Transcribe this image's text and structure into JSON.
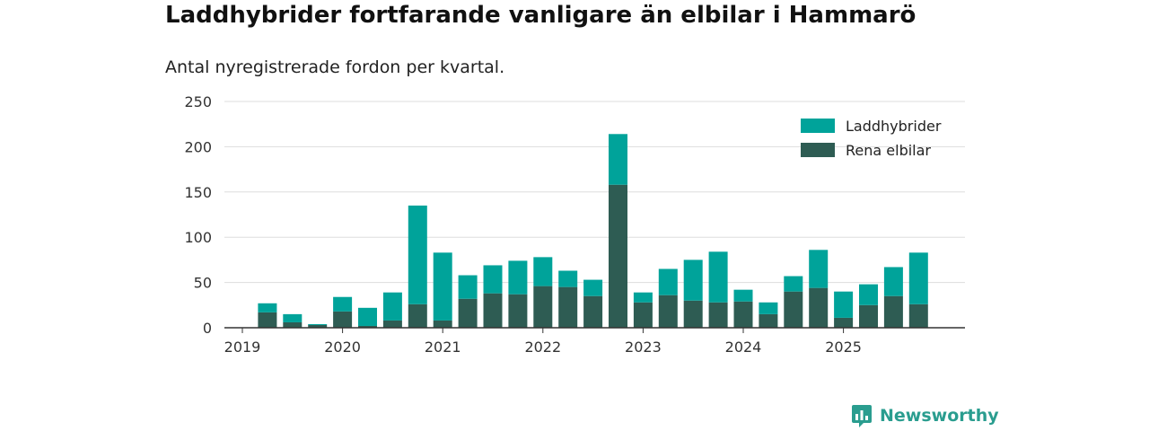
{
  "header": {
    "title": "Laddhybrider fortfarande vanligare än elbilar i Hammarö",
    "subtitle": "Antal nyregistrerade fordon per kvartal."
  },
  "brand": {
    "label": "Newsworthy",
    "icon": "newsworthy-logo-icon"
  },
  "colors": {
    "laddhybrider": "#00a39a",
    "elbilar": "#2e5c53",
    "grid": "#dddddd",
    "axis": "#333333"
  },
  "chart_data": {
    "type": "bar",
    "stacked": true,
    "categories": [
      "2019 Q1",
      "2019 Q2",
      "2019 Q3",
      "2019 Q4",
      "2020 Q1",
      "2020 Q2",
      "2020 Q3",
      "2020 Q4",
      "2021 Q1",
      "2021 Q2",
      "2021 Q3",
      "2021 Q4",
      "2022 Q1",
      "2022 Q2",
      "2022 Q3",
      "2022 Q4",
      "2023 Q1",
      "2023 Q2",
      "2023 Q3",
      "2023 Q4",
      "2024 Q1",
      "2024 Q2",
      "2024 Q3",
      "2024 Q4",
      "2025 Q1",
      "2025 Q2",
      "2025 Q3",
      "2025 Q4"
    ],
    "series": [
      {
        "name": "Rena elbilar",
        "values": [
          0,
          17,
          6,
          3,
          18,
          2,
          8,
          26,
          8,
          32,
          38,
          37,
          46,
          45,
          35,
          158,
          28,
          36,
          30,
          28,
          29,
          15,
          40,
          44,
          11,
          25,
          35,
          26
        ]
      },
      {
        "name": "Laddhybrider",
        "values": [
          0,
          10,
          9,
          1,
          16,
          20,
          31,
          109,
          75,
          26,
          31,
          37,
          32,
          18,
          18,
          56,
          11,
          29,
          45,
          56,
          13,
          13,
          17,
          42,
          29,
          23,
          32,
          57
        ]
      }
    ],
    "x_ticks": [
      "2019",
      "2020",
      "2021",
      "2022",
      "2023",
      "2024",
      "2025"
    ],
    "y_ticks": [
      "0",
      "50",
      "100",
      "150",
      "200",
      "250"
    ],
    "ylim": [
      0,
      250
    ],
    "legend": {
      "position": "top-right",
      "items": [
        "Laddhybrider",
        "Rena elbilar"
      ]
    },
    "grid": true
  }
}
